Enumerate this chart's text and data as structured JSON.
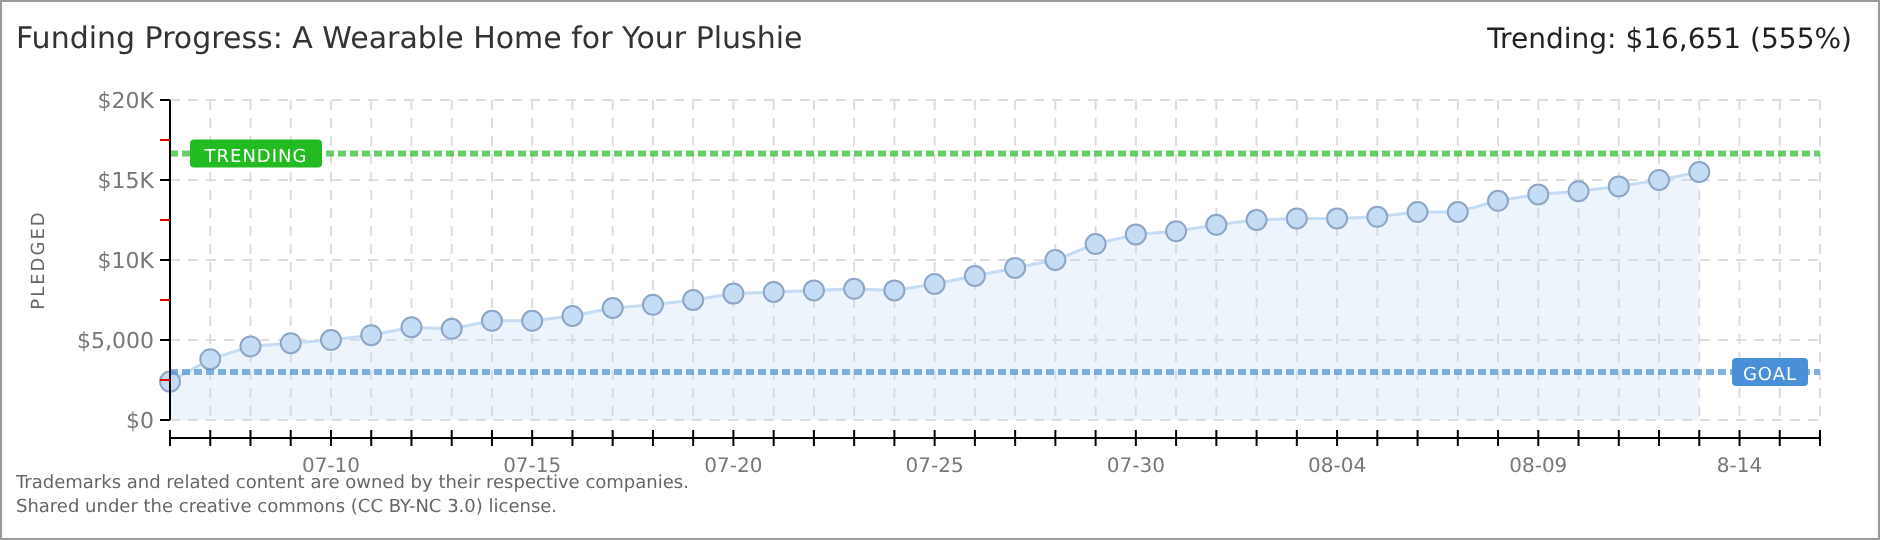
{
  "chart_data": {
    "type": "area",
    "title": "Funding Progress: A Wearable Home for Your Plushie",
    "subtitle": "Trending: $16,651 (555%)",
    "ylabel": "PLEDGED",
    "x": [
      "--07-06",
      "--07-07",
      "--07-08",
      "--07-09",
      "--07-10",
      "--07-11",
      "--07-12",
      "--07-13",
      "--07-14",
      "--07-15",
      "--07-16",
      "--07-17",
      "--07-18",
      "--07-19",
      "--07-20",
      "--07-21",
      "--07-22",
      "--07-23",
      "--07-24",
      "--07-25",
      "--07-26",
      "--07-27",
      "--07-28",
      "--07-29",
      "--07-30",
      "--07-31",
      "--08-01",
      "--08-02",
      "--08-03",
      "--08-04",
      "--08-05",
      "--08-06",
      "--08-07",
      "--08-08",
      "--08-09",
      "--08-10",
      "--08-11",
      "--08-12",
      "--08-13"
    ],
    "series": [
      {
        "color": "#c5dcf5",
        "values": [
          2400,
          3800,
          4600,
          4800,
          5000,
          5300,
          5800,
          5700,
          6200,
          6200,
          6500,
          7000,
          7200,
          7500,
          7900,
          8000,
          8100,
          8200,
          8100,
          8500,
          9000,
          9500,
          10000,
          11000,
          11600,
          11800,
          12200,
          12500,
          12600,
          12600,
          12700,
          13000,
          13000,
          13700,
          14100,
          14300,
          14600,
          15000,
          15500
        ]
      }
    ],
    "marker": "circle",
    "grid": true,
    "xlim": [
      "--07-06",
      "--08-16"
    ],
    "xticks": [
      {
        "value": "--07-06",
        "label": null
      },
      {
        "value": "--07-07",
        "label": null
      },
      {
        "value": "--07-08",
        "label": null
      },
      {
        "value": "--07-09",
        "label": null
      },
      {
        "value": "--07-10",
        "label": "07-10"
      },
      {
        "value": "--07-11",
        "label": null
      },
      {
        "value": "--07-12",
        "label": null
      },
      {
        "value": "--07-13",
        "label": null
      },
      {
        "value": "--07-14",
        "label": null
      },
      {
        "value": "--07-15",
        "label": "07-15"
      },
      {
        "value": "--07-16",
        "label": null
      },
      {
        "value": "--07-17",
        "label": null
      },
      {
        "value": "--07-18",
        "label": null
      },
      {
        "value": "--07-19",
        "label": null
      },
      {
        "value": "--07-20",
        "label": "07-20"
      },
      {
        "value": "--07-21",
        "label": null
      },
      {
        "value": "--07-22",
        "label": null
      },
      {
        "value": "--07-23",
        "label": null
      },
      {
        "value": "--07-24",
        "label": null
      },
      {
        "value": "--07-25",
        "label": "07-25"
      },
      {
        "value": "--07-26",
        "label": null
      },
      {
        "value": "--07-27",
        "label": null
      },
      {
        "value": "--07-28",
        "label": null
      },
      {
        "value": "--07-29",
        "label": null
      },
      {
        "value": "--07-30",
        "label": "07-30"
      },
      {
        "value": "--07-31",
        "label": null
      },
      {
        "value": "--08-01",
        "label": null
      },
      {
        "value": "--08-02",
        "label": null
      },
      {
        "value": "--08-03",
        "label": null
      },
      {
        "value": "--08-04",
        "label": "08-04"
      },
      {
        "value": "--08-05",
        "label": null
      },
      {
        "value": "--08-06",
        "label": null
      },
      {
        "value": "--08-07",
        "label": null
      },
      {
        "value": "--08-08",
        "label": null
      },
      {
        "value": "--08-09",
        "label": "08-09"
      },
      {
        "value": "--08-10",
        "label": null
      },
      {
        "value": "--08-11",
        "label": null
      },
      {
        "value": "--08-12",
        "label": null
      },
      {
        "value": "--08-13",
        "label": null
      },
      {
        "value": "--08-14",
        "label": "8-14"
      },
      {
        "value": "--08-15",
        "label": null
      },
      {
        "value": "--08-16",
        "label": null
      }
    ],
    "ylim": [
      0,
      20000
    ],
    "yticks": [
      {
        "value": 0,
        "label": "$0"
      },
      {
        "value": 2500,
        "label": null
      },
      {
        "value": 5000,
        "label": "$5,000"
      },
      {
        "value": 7500,
        "label": null
      },
      {
        "value": 10000,
        "label": "$10K"
      },
      {
        "value": 12500,
        "label": null
      },
      {
        "value": 15000,
        "label": "$15K"
      },
      {
        "value": 17500,
        "label": null
      },
      {
        "value": 20000,
        "label": "$20K"
      }
    ],
    "ref_lines": [
      {
        "axis": "y",
        "value": 16651,
        "label": "TRENDING",
        "color": "#22bb22",
        "line_style": "dotted"
      },
      {
        "axis": "y",
        "value": 3000,
        "label": "GOAL",
        "color": "#4a90d9",
        "line_style": "dotted"
      }
    ],
    "annotations": [
      "Trademarks and related content are owned by their respective companies.",
      "Shared under the creative commons (CC BY-NC 3.0) license."
    ]
  }
}
